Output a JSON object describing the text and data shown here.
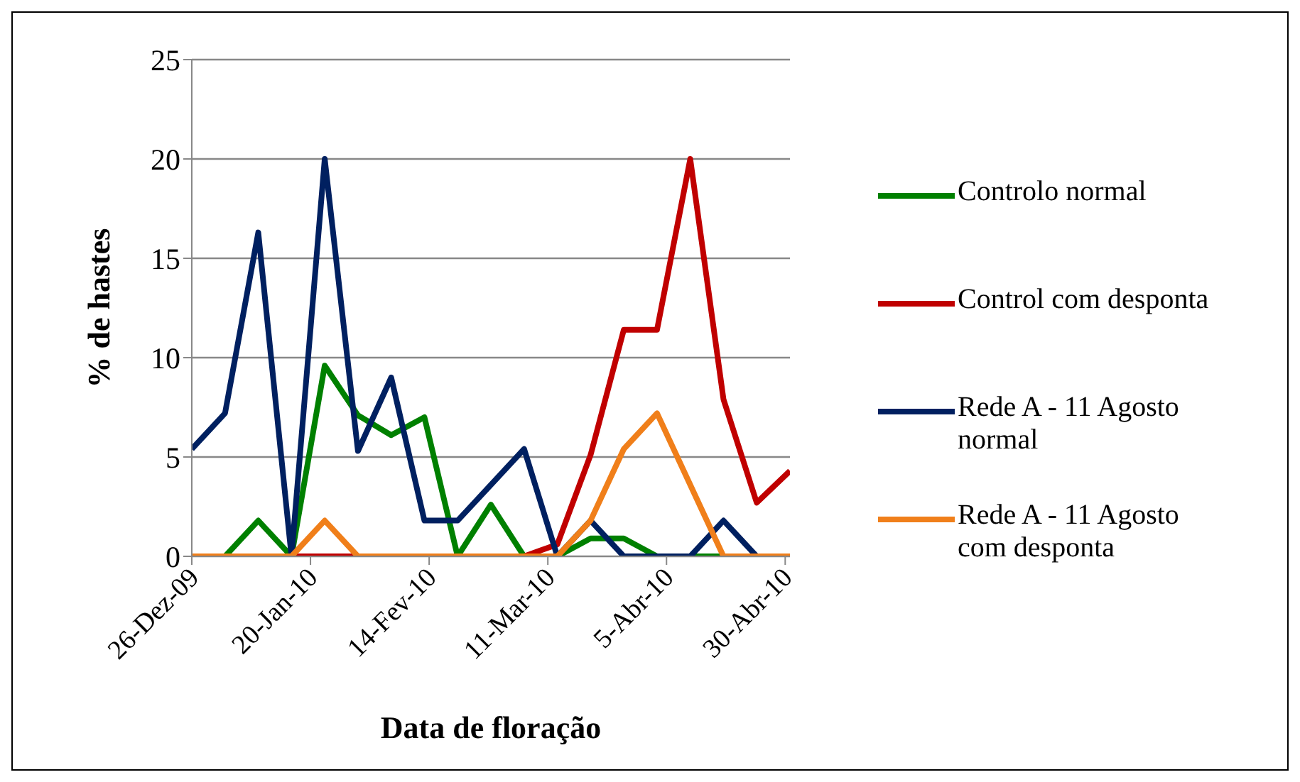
{
  "chart_data": {
    "type": "line",
    "xlabel": "Data de floração",
    "ylabel": "% de hastes",
    "x": [
      "2009-12-26",
      "2010-01-02",
      "2010-01-09",
      "2010-01-16",
      "2010-01-23",
      "2010-01-30",
      "2010-02-06",
      "2010-02-13",
      "2010-02-20",
      "2010-02-27",
      "2010-03-06",
      "2010-03-13",
      "2010-03-20",
      "2010-03-27",
      "2010-04-03",
      "2010-04-10",
      "2010-04-17",
      "2010-04-24",
      "2010-05-01"
    ],
    "series": [
      {
        "name": "Controlo normal",
        "color": "#008000",
        "values": [
          0,
          0,
          1.8,
          0,
          9.6,
          7.1,
          6.1,
          7.0,
          0,
          2.6,
          0,
          0,
          0.9,
          0.9,
          0,
          0,
          0,
          0,
          0
        ]
      },
      {
        "name": "Control com desponta",
        "color": "#c00000",
        "values": [
          null,
          null,
          null,
          0,
          0,
          0,
          0,
          0,
          0,
          0,
          0,
          0.6,
          5.1,
          11.4,
          11.4,
          20,
          7.9,
          2.7,
          4.3
        ]
      },
      {
        "name": "Rede A - 11 Agosto normal",
        "color": "#002060",
        "values": [
          5.4,
          7.2,
          16.3,
          0,
          20,
          5.3,
          9.0,
          1.8,
          1.8,
          3.6,
          5.4,
          0,
          1.8,
          0,
          0,
          0,
          1.8,
          0,
          0
        ]
      },
      {
        "name": "Rede A - 11 Agosto com desponta",
        "color": "#f07f1a",
        "values": [
          0,
          0,
          0,
          0,
          1.8,
          0,
          0,
          0,
          0,
          0,
          0,
          0,
          1.8,
          5.4,
          7.2,
          3.6,
          0,
          0,
          0
        ]
      }
    ],
    "xlim": [
      "2009-12-26",
      "2010-05-01"
    ],
    "xticks": [
      {
        "value": "2009-12-26",
        "label": "26-Dez-09"
      },
      {
        "value": "2010-01-20",
        "label": "20-Jan-10"
      },
      {
        "value": "2010-02-14",
        "label": "14-Fev-10"
      },
      {
        "value": "2010-03-11",
        "label": "11-Mar-10"
      },
      {
        "value": "2010-04-05",
        "label": "5-Abr-10"
      },
      {
        "value": "2010-04-30",
        "label": "30-Abr-10"
      }
    ],
    "ylim": [
      0,
      25
    ],
    "yticks": [
      0,
      5,
      10,
      15,
      20,
      25
    ],
    "grid": "y",
    "legend": "right",
    "marker": "none",
    "line_style": "solid"
  }
}
